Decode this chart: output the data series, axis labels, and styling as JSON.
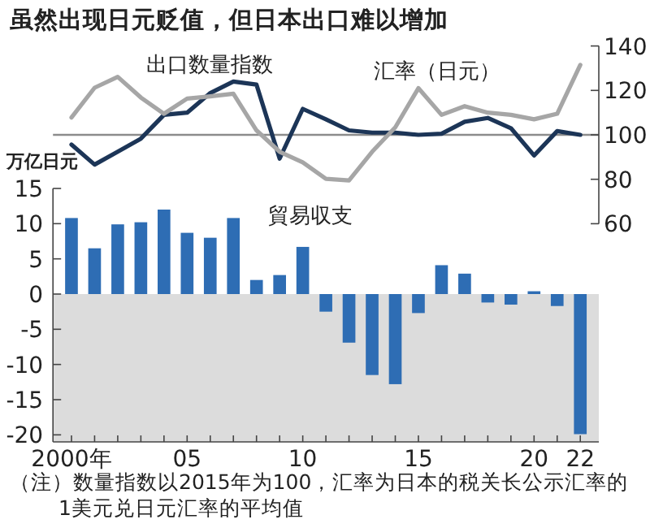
{
  "chart_data": [
    {
      "type": "line",
      "title": "虽然出现日元贬值，但日本出口难以增加",
      "x": [
        2000,
        2001,
        2002,
        2003,
        2004,
        2005,
        2006,
        2007,
        2008,
        2009,
        2010,
        2011,
        2012,
        2013,
        2014,
        2015,
        2016,
        2017,
        2018,
        2019,
        2020,
        2021,
        2022
      ],
      "series": [
        {
          "name": "出口数量指数",
          "color": "#1c3557",
          "values": [
            95.6,
            86.6,
            92.4,
            98.3,
            109,
            110,
            118.8,
            124,
            122.6,
            89.3,
            111.7,
            107,
            102,
            101,
            101,
            100,
            100.5,
            105.9,
            107.6,
            103,
            90.7,
            101.7,
            100
          ]
        },
        {
          "name": "汇率（日元）",
          "color": "#a6a6a6",
          "values": [
            107.8,
            121.2,
            126.1,
            116.8,
            109.5,
            116.3,
            117.3,
            118.5,
            102,
            92.4,
            87.6,
            80.2,
            79.5,
            92.4,
            103.4,
            121,
            109,
            112.9,
            110,
            109,
            107,
            109.5,
            131.5
          ]
        }
      ],
      "xlim": [
        1999.2,
        2022.8
      ],
      "ylim": [
        60,
        140
      ],
      "yticks": [
        60,
        80,
        100,
        120,
        140
      ],
      "tick_labels": "y",
      "ref_lines": [
        {
          "axis": "y",
          "value": 100,
          "color": "#8c8c8c"
        }
      ]
    },
    {
      "type": "bar",
      "ylabel": "万亿日元",
      "x": [
        2000,
        2001,
        2002,
        2003,
        2004,
        2005,
        2006,
        2007,
        2008,
        2009,
        2010,
        2011,
        2012,
        2013,
        2014,
        2015,
        2016,
        2017,
        2018,
        2019,
        2020,
        2021,
        2022
      ],
      "series": [
        {
          "name": "貿易収支",
          "color": "#2e6db4",
          "values": [
            10.8,
            6.5,
            9.9,
            10.2,
            12.0,
            8.7,
            8.0,
            10.8,
            2.0,
            2.7,
            6.7,
            -2.5,
            -6.9,
            -11.5,
            -12.8,
            -2.7,
            4.1,
            2.9,
            -1.2,
            -1.5,
            0.4,
            -1.7,
            -19.9
          ]
        }
      ],
      "xlim": [
        1999.2,
        2022.8
      ],
      "ylim": [
        -21,
        15
      ],
      "yticks": [
        -20,
        -15,
        -10,
        -5,
        0,
        5,
        10,
        15
      ],
      "xticks": [
        {
          "value": 2000,
          "label": "2000年"
        },
        {
          "value": 2001,
          "label": null
        },
        {
          "value": 2002,
          "label": null
        },
        {
          "value": 2003,
          "label": null
        },
        {
          "value": 2004,
          "label": null
        },
        {
          "value": 2005,
          "label": "05"
        },
        {
          "value": 2006,
          "label": null
        },
        {
          "value": 2007,
          "label": null
        },
        {
          "value": 2008,
          "label": null
        },
        {
          "value": 2009,
          "label": null
        },
        {
          "value": 2010,
          "label": "10"
        },
        {
          "value": 2011,
          "label": null
        },
        {
          "value": 2012,
          "label": null
        },
        {
          "value": 2013,
          "label": null
        },
        {
          "value": 2014,
          "label": null
        },
        {
          "value": 2015,
          "label": "15"
        },
        {
          "value": 2016,
          "label": null
        },
        {
          "value": 2017,
          "label": null
        },
        {
          "value": 2018,
          "label": null
        },
        {
          "value": 2019,
          "label": null
        },
        {
          "value": 2020,
          "label": "20"
        },
        {
          "value": 2021,
          "label": null
        },
        {
          "value": 2022,
          "label": "22"
        }
      ],
      "bands": [
        {
          "axis": "y",
          "from": 0,
          "to": -21,
          "color": "#dcdcdc"
        }
      ],
      "annotations": [
        "（注）数量指数以2015年为100，汇率为日本的税关长公示汇率的1美元兑日元汇率的平均值"
      ]
    }
  ]
}
